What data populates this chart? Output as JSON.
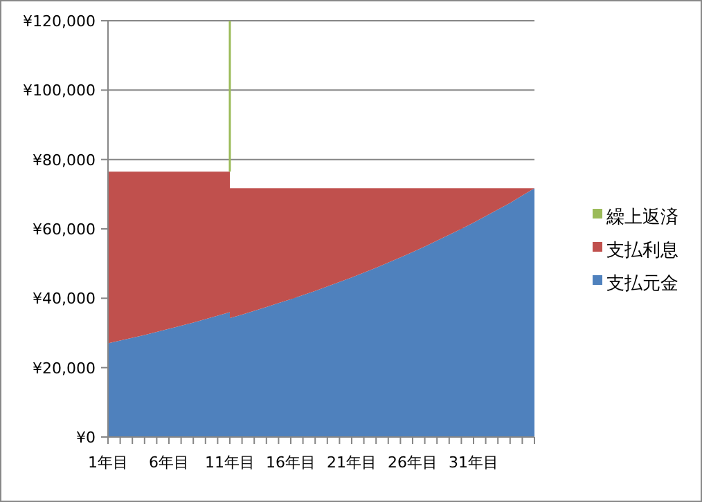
{
  "chart_data": {
    "type": "area",
    "stacked": true,
    "grid": "y",
    "legend": "right",
    "xlim": [
      1,
      36
    ],
    "xticks": [
      {
        "value": 1,
        "label": "1年目"
      },
      {
        "value": 2,
        "label": null
      },
      {
        "value": 3,
        "label": null
      },
      {
        "value": 4,
        "label": null
      },
      {
        "value": 5,
        "label": null
      },
      {
        "value": 6,
        "label": "6年目"
      },
      {
        "value": 7,
        "label": null
      },
      {
        "value": 8,
        "label": null
      },
      {
        "value": 9,
        "label": null
      },
      {
        "value": 10,
        "label": null
      },
      {
        "value": 11,
        "label": "11年目"
      },
      {
        "value": 12,
        "label": null
      },
      {
        "value": 13,
        "label": null
      },
      {
        "value": 14,
        "label": null
      },
      {
        "value": 15,
        "label": null
      },
      {
        "value": 16,
        "label": "16年目"
      },
      {
        "value": 17,
        "label": null
      },
      {
        "value": 18,
        "label": null
      },
      {
        "value": 19,
        "label": null
      },
      {
        "value": 20,
        "label": null
      },
      {
        "value": 21,
        "label": "21年目"
      },
      {
        "value": 22,
        "label": null
      },
      {
        "value": 23,
        "label": null
      },
      {
        "value": 24,
        "label": null
      },
      {
        "value": 25,
        "label": null
      },
      {
        "value": 26,
        "label": "26年目"
      },
      {
        "value": 27,
        "label": null
      },
      {
        "value": 28,
        "label": null
      },
      {
        "value": 29,
        "label": null
      },
      {
        "value": 30,
        "label": null
      },
      {
        "value": 31,
        "label": "31年目"
      },
      {
        "value": 32,
        "label": null
      },
      {
        "value": 33,
        "label": null
      },
      {
        "value": 34,
        "label": null
      },
      {
        "value": 35,
        "label": null
      },
      {
        "value": 36,
        "label": null
      }
    ],
    "ylim": [
      0,
      120000
    ],
    "yticks": [
      {
        "value": 0,
        "label": "¥0"
      },
      {
        "value": 20000,
        "label": "¥20,000"
      },
      {
        "value": 40000,
        "label": "¥40,000"
      },
      {
        "value": 60000,
        "label": "¥60,000"
      },
      {
        "value": 80000,
        "label": "¥80,000"
      },
      {
        "value": 100000,
        "label": "¥100,000"
      },
      {
        "value": 120000,
        "label": "¥120,000"
      }
    ],
    "series": [
      {
        "name": "支払元金",
        "color": "#4f81bd",
        "x": [
          1,
          2,
          3,
          4,
          5,
          6,
          7,
          8,
          9,
          10,
          11,
          11,
          12,
          13,
          14,
          15,
          16,
          17,
          18,
          19,
          20,
          21,
          22,
          23,
          24,
          25,
          26,
          27,
          28,
          29,
          30,
          31,
          32,
          33,
          34,
          35,
          36
        ],
        "values": [
          27000,
          27800,
          28600,
          29400,
          30300,
          31200,
          32100,
          33000,
          34000,
          35000,
          36000,
          34300,
          35300,
          36400,
          37500,
          38600,
          39700,
          40900,
          42100,
          43400,
          44700,
          46000,
          47400,
          48800,
          50300,
          51800,
          53300,
          54900,
          56600,
          58300,
          60000,
          61800,
          63700,
          65600,
          67500,
          69600,
          71700
        ]
      },
      {
        "name": "支払利息",
        "color": "#c0504d",
        "x": [
          1,
          2,
          3,
          4,
          5,
          6,
          7,
          8,
          9,
          10,
          11,
          11,
          12,
          13,
          14,
          15,
          16,
          17,
          18,
          19,
          20,
          21,
          22,
          23,
          24,
          25,
          26,
          27,
          28,
          29,
          30,
          31,
          32,
          33,
          34,
          35,
          36
        ],
        "values": [
          49500,
          48700,
          47900,
          47100,
          46200,
          45300,
          44400,
          43500,
          42500,
          41500,
          40500,
          37400,
          36400,
          35300,
          34200,
          33100,
          32000,
          30800,
          29600,
          28300,
          27000,
          25700,
          24300,
          22900,
          21400,
          19900,
          18400,
          16800,
          15100,
          13400,
          11700,
          9900,
          8000,
          6100,
          4200,
          2100,
          0
        ]
      },
      {
        "name": "繰上返済",
        "color": "#9bbb59",
        "type": "line",
        "x": [
          11,
          11
        ],
        "values": [
          76500,
          120000
        ]
      }
    ]
  }
}
